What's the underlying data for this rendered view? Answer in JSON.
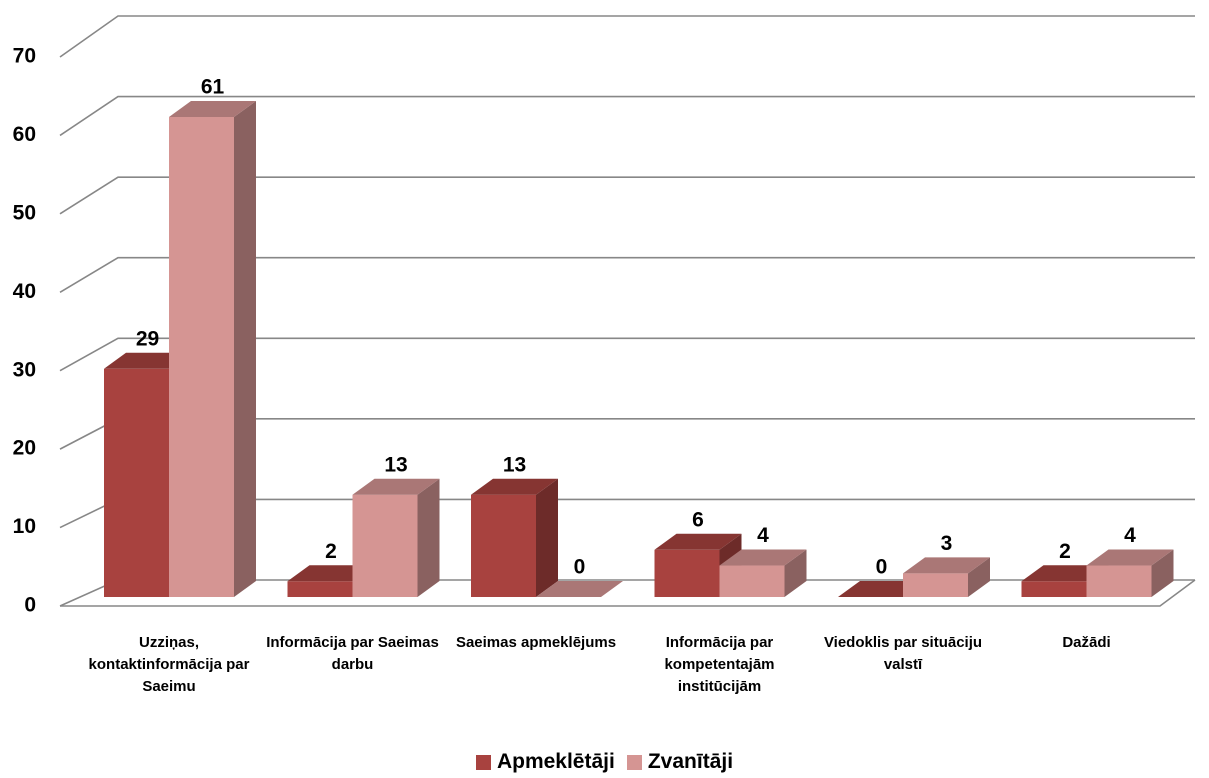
{
  "chart_data": {
    "type": "bar3d",
    "categories": [
      "Uzziņas, kontaktinformācija par Saeimu",
      "Informācija par Saeimas darbu",
      "Saeimas apmeklējums",
      "Informācija par kompetentajām institūcijām",
      "Viedoklis par situāciju valstī",
      "Dažādi"
    ],
    "series": [
      {
        "name": "Apmeklētāji",
        "color": "#a8423f",
        "values": [
          29,
          2,
          13,
          6,
          0,
          2
        ]
      },
      {
        "name": "Zvanītāji",
        "color": "#d59593",
        "values": [
          61,
          13,
          0,
          4,
          3,
          4
        ]
      }
    ],
    "ylim": [
      0,
      70
    ],
    "yticks": [
      0,
      10,
      20,
      30,
      40,
      50,
      60,
      70
    ],
    "grid": true,
    "legend": "bottom"
  }
}
